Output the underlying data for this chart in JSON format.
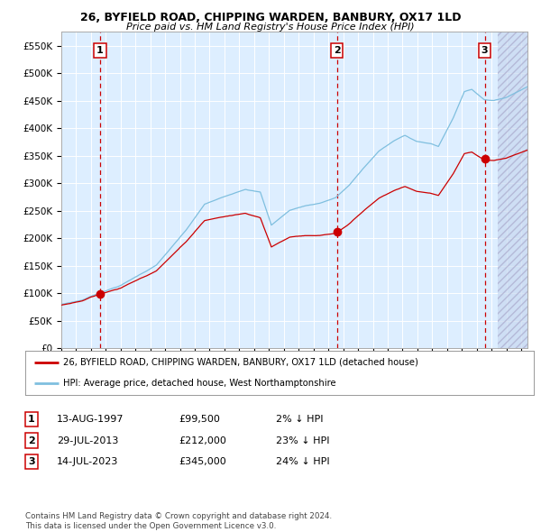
{
  "title": "26, BYFIELD ROAD, CHIPPING WARDEN, BANBURY, OX17 1LD",
  "subtitle": "Price paid vs. HM Land Registry's House Price Index (HPI)",
  "sale_dates_str": [
    "1997-08-13",
    "2013-07-29",
    "2023-07-14"
  ],
  "sale_prices": [
    99500,
    212000,
    345000
  ],
  "sale_labels": [
    "1",
    "2",
    "3"
  ],
  "legend_red": "26, BYFIELD ROAD, CHIPPING WARDEN, BANBURY, OX17 1LD (detached house)",
  "legend_blue": "HPI: Average price, detached house, West Northamptonshire",
  "table_rows": [
    [
      "1",
      "13-AUG-1997",
      "£99,500",
      "2% ↓ HPI"
    ],
    [
      "2",
      "29-JUL-2013",
      "£212,000",
      "23% ↓ HPI"
    ],
    [
      "3",
      "14-JUL-2023",
      "£345,000",
      "24% ↓ HPI"
    ]
  ],
  "footer": "Contains HM Land Registry data © Crown copyright and database right 2024.\nThis data is licensed under the Open Government Licence v3.0.",
  "ylim": [
    0,
    575000
  ],
  "yticks": [
    0,
    50000,
    100000,
    150000,
    200000,
    250000,
    300000,
    350000,
    400000,
    450000,
    500000,
    550000
  ],
  "ytick_labels": [
    "£0",
    "£50K",
    "£100K",
    "£150K",
    "£200K",
    "£250K",
    "£300K",
    "£350K",
    "£400K",
    "£450K",
    "£500K",
    "£550K"
  ],
  "hpi_color": "#7fbfdf",
  "price_color": "#cc0000",
  "bg_color": "#ddeeff",
  "grid_color": "#ffffff",
  "vline_color": "#cc0000",
  "marker_color": "#cc0000",
  "box_color": "#cc0000",
  "hatch_color": "#aaaacc",
  "start_year": 1995,
  "end_year": 2026
}
